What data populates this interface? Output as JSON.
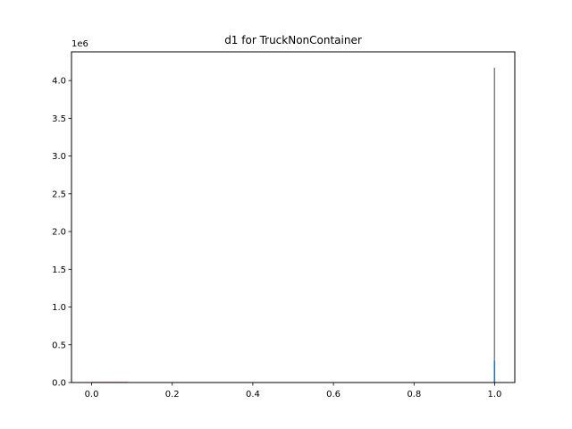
{
  "chart_data": {
    "type": "bar",
    "title": "d1 for TruckNonContainer",
    "xlabel": "",
    "ylabel": "",
    "offset_label": "1e6",
    "xlim": [
      -0.05,
      1.05
    ],
    "ylim": [
      0,
      4380000
    ],
    "xticks": [
      0.0,
      0.2,
      0.4,
      0.6,
      0.8,
      1.0
    ],
    "xtick_labels": [
      "0.0",
      "0.2",
      "0.4",
      "0.6",
      "0.8",
      "1.0"
    ],
    "yticks": [
      0,
      500000,
      1000000,
      1500000,
      2000000,
      2500000,
      3000000,
      3500000,
      4000000
    ],
    "ytick_labels": [
      "0.0",
      "0.5",
      "1.0",
      "1.5",
      "2.0",
      "2.5",
      "3.0",
      "3.5",
      "4.0"
    ],
    "grid": false,
    "series": [
      {
        "color": "#808080",
        "bins": [
          {
            "x0": 0.998,
            "x1": 1.001,
            "value": 4170000
          }
        ]
      },
      {
        "color": "#1f77b4",
        "bins": [
          {
            "x0": 0.998,
            "x1": 1.001,
            "value": 290000
          }
        ]
      },
      {
        "color": "#d62728",
        "bins": [
          {
            "x0": 0.0,
            "x1": 0.09,
            "value": 8000
          }
        ]
      }
    ]
  }
}
